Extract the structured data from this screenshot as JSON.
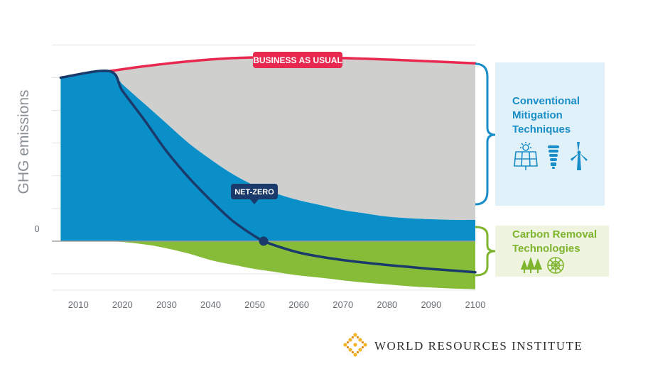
{
  "chart_data": {
    "type": "area",
    "ylabel": "GHG emissions",
    "xlabel": "",
    "xlim": [
      2004,
      2100
    ],
    "ylim": [
      -1.5,
      6.9
    ],
    "grid": true,
    "x_ticks": [
      2010,
      2020,
      2030,
      2040,
      2050,
      2060,
      2070,
      2080,
      2090,
      2100
    ],
    "y_ticks": [
      {
        "value": 0,
        "label": "0"
      }
    ],
    "series": [
      {
        "name": "BUSINESS AS USUAL",
        "x": [
          2006,
          2017,
          2025,
          2035,
          2045,
          2055,
          2065,
          2075,
          2085,
          2095,
          2100
        ],
        "values": [
          5.0,
          5.2,
          5.35,
          5.5,
          5.6,
          5.63,
          5.62,
          5.58,
          5.53,
          5.47,
          5.44
        ]
      },
      {
        "name": "Conventional Mitigation Techniques",
        "x": [
          2006,
          2017,
          2020,
          2025,
          2030,
          2035,
          2040,
          2045,
          2050,
          2055,
          2060,
          2065,
          2070,
          2075,
          2080,
          2085,
          2090,
          2095,
          2100
        ],
        "values": [
          5.0,
          5.2,
          4.8,
          4.2,
          3.6,
          3.0,
          2.5,
          2.05,
          1.7,
          1.45,
          1.25,
          1.1,
          0.95,
          0.85,
          0.75,
          0.7,
          0.67,
          0.65,
          0.65
        ]
      },
      {
        "name": "Carbon Removal Technologies",
        "x": [
          2006,
          2017,
          2025,
          2030,
          2035,
          2040,
          2045,
          2050,
          2055,
          2060,
          2065,
          2070,
          2075,
          2080,
          2085,
          2090,
          2095,
          2100
        ],
        "values": [
          0,
          0,
          -0.1,
          -0.22,
          -0.38,
          -0.58,
          -0.72,
          -0.85,
          -0.95,
          -1.05,
          -1.12,
          -1.2,
          -1.27,
          -1.32,
          -1.38,
          -1.42,
          -1.45,
          -1.47
        ]
      },
      {
        "name": "NET-ZERO",
        "x": [
          2006,
          2017,
          2020,
          2025,
          2030,
          2035,
          2040,
          2045,
          2050,
          2052,
          2055,
          2060,
          2065,
          2070,
          2075,
          2080,
          2085,
          2090,
          2095,
          2100
        ],
        "values": [
          5.0,
          5.2,
          4.6,
          3.7,
          2.75,
          1.95,
          1.25,
          0.62,
          0.15,
          0.0,
          -0.15,
          -0.35,
          -0.48,
          -0.58,
          -0.66,
          -0.73,
          -0.79,
          -0.85,
          -0.9,
          -0.95
        ]
      }
    ],
    "annotations": [
      {
        "text": "BUSINESS AS USUAL",
        "x": 2075,
        "y": 5.58
      },
      {
        "text": "NET-ZERO",
        "x": 2052,
        "y": 1.2
      },
      {
        "text": "Conventional Mitigation Techniques",
        "lines": [
          "Conventional",
          "Mitigation",
          "Techniques"
        ]
      },
      {
        "text": "Carbon Removal Technologies",
        "lines": [
          "Carbon Removal",
          "Technologies"
        ]
      }
    ],
    "net_zero_point": {
      "x": 2052,
      "y": 0
    },
    "colors": {
      "business_as_usual": "#e8294f",
      "conventional": "#0a8fc9",
      "gap": "#cfcfcd",
      "removal": "#86bc38",
      "net_zero": "#1a3a6b",
      "panel_conventional": "#e1f1fa",
      "panel_removal": "#eef4e0",
      "conventional_text": "#1a8ec8",
      "removal_text": "#7fb52e"
    }
  },
  "panels": {
    "conventional": {
      "line1": "Conventional",
      "line2": "Mitigation",
      "line3": "Techniques",
      "icons": [
        "solar-panel-icon",
        "light-bulb-icon",
        "wind-turbine-icon"
      ]
    },
    "removal": {
      "line1": "Carbon Removal",
      "line2": "Technologies",
      "icons": [
        "trees-icon",
        "direct-air-capture-icon"
      ]
    }
  },
  "footer": {
    "org": "WORLD RESOURCES INSTITUTE",
    "logo": "wri-logo"
  }
}
